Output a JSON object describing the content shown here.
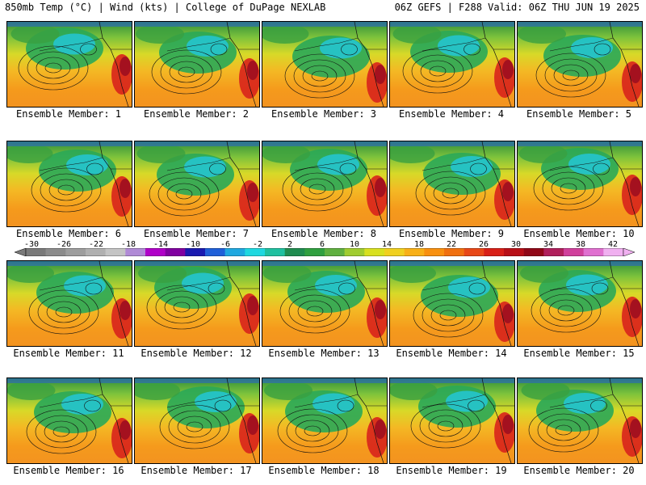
{
  "header": {
    "left": "850mb Temp (°C) | Wind (kts) | College of DuPage NEXLAB",
    "right": "06Z GEFS | F288 Valid: 06Z THU JUN 19 2025"
  },
  "panel_label_prefix": "Ensemble Member: ",
  "members": [
    "1",
    "2",
    "3",
    "4",
    "5",
    "6",
    "7",
    "8",
    "9",
    "10",
    "11",
    "12",
    "13",
    "14",
    "15",
    "16",
    "17",
    "18",
    "19",
    "20"
  ],
  "colorbar": {
    "ticks": [
      "-30",
      "-26",
      "-22",
      "-18",
      "-14",
      "-10",
      "-6",
      "-2",
      "2",
      "6",
      "10",
      "14",
      "18",
      "22",
      "26",
      "30",
      "34",
      "38",
      "42"
    ],
    "colors": [
      "#7a7a7a",
      "#8c8c8c",
      "#9e9e9e",
      "#b0b0b0",
      "#c4c4c4",
      "#b08ad6",
      "#b000c8",
      "#8000a0",
      "#1a1ab0",
      "#2060d8",
      "#20a8e0",
      "#20d8e0",
      "#20c0a0",
      "#208c50",
      "#30a040",
      "#60b040",
      "#a0cc30",
      "#d8e020",
      "#f0d020",
      "#f8b018",
      "#f89010",
      "#f07010",
      "#e84818",
      "#d82018",
      "#b81018",
      "#900818",
      "#b0205c",
      "#d0409c",
      "#e070d0",
      "#f0b0f0"
    ]
  }
}
